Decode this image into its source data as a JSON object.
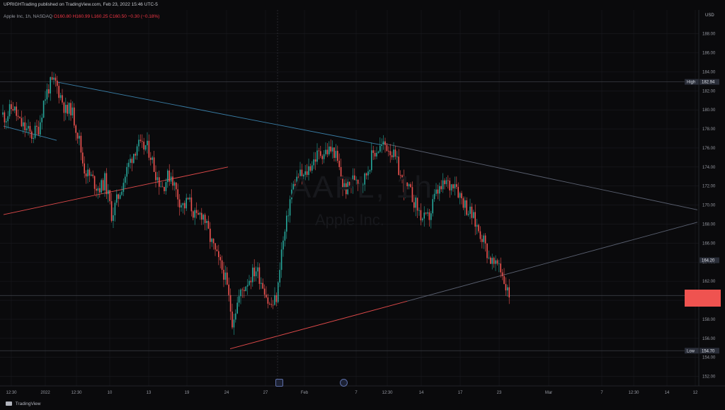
{
  "header": {
    "published": "UPRIGHTrading published on TradingView.com, Feb 23, 2022 15:46 UTC-5"
  },
  "legend": {
    "symbol": "Apple Inc, 1h, NASDAQ",
    "ohlc": "O160.80 H160.99 L160.25 C160.50 −0.30 (−0.18%)"
  },
  "watermark": {
    "symbol": "AAPL, 1h",
    "name": "Apple Inc."
  },
  "currency": "USD",
  "footer": {
    "brand": "TradingView"
  },
  "colors": {
    "background": "#0a0a0c",
    "up": "#26a69a",
    "down": "#ef5350",
    "trend_upper": "#3a7fa8",
    "trend_lower": "#e04a4a",
    "trend_right": "#5a6070",
    "level_line": "#3b3d44",
    "grid": "#1a1b20"
  },
  "chart_data": {
    "type": "candlestick",
    "ylim": [
      151.0,
      190.5
    ],
    "y_ticks": [
      152,
      154,
      156,
      158,
      160,
      162,
      164,
      166,
      168,
      170,
      172,
      174,
      176,
      178,
      180,
      182,
      184,
      186,
      188
    ],
    "x_tick_labels": [
      "12:30",
      "2022",
      "12:30",
      "10",
      "13",
      "19",
      "24",
      "27",
      "Feb",
      "7",
      "12:30",
      "14",
      "17",
      "23",
      "Mar",
      "7",
      "12:30",
      "14",
      "12"
    ],
    "price_tags": [
      {
        "label": "High",
        "value": "182.94",
        "price": 182.94
      },
      {
        "label": "",
        "value": "164.20",
        "price": 164.2
      },
      {
        "label": "Low",
        "value": "154.70",
        "price": 154.7
      }
    ],
    "current_price": 160.5,
    "path": [
      [
        0,
        179.8
      ],
      [
        8,
        179.2
      ],
      [
        18,
        180.4
      ],
      [
        28,
        178.6
      ],
      [
        36,
        178.0
      ],
      [
        45,
        177.3
      ],
      [
        55,
        178.2
      ],
      [
        62,
        181.0
      ],
      [
        70,
        182.6
      ],
      [
        78,
        182.9
      ],
      [
        86,
        181.4
      ],
      [
        94,
        179.6
      ],
      [
        100,
        180.2
      ],
      [
        106,
        178.6
      ],
      [
        112,
        176.8
      ],
      [
        118,
        174.0
      ],
      [
        124,
        173.2
      ],
      [
        130,
        172.8
      ],
      [
        136,
        172.0
      ],
      [
        142,
        171.8
      ],
      [
        148,
        172.6
      ],
      [
        154,
        170.5
      ],
      [
        158,
        168.9
      ],
      [
        164,
        170.2
      ],
      [
        170,
        171.6
      ],
      [
        176,
        172.9
      ],
      [
        182,
        174.3
      ],
      [
        188,
        175.4
      ],
      [
        194,
        176.4
      ],
      [
        200,
        175.9
      ],
      [
        206,
        176.2
      ],
      [
        212,
        175.5
      ],
      [
        218,
        173.8
      ],
      [
        224,
        172.6
      ],
      [
        230,
        171.9
      ],
      [
        236,
        172.9
      ],
      [
        242,
        173.2
      ],
      [
        248,
        171.6
      ],
      [
        254,
        170.4
      ],
      [
        260,
        169.8
      ],
      [
        266,
        170.6
      ],
      [
        272,
        169.4
      ],
      [
        278,
        168.4
      ],
      [
        284,
        169.2
      ],
      [
        288,
        168.9
      ],
      [
        292,
        167.6
      ],
      [
        298,
        166.2
      ],
      [
        304,
        165.0
      ],
      [
        310,
        163.8
      ],
      [
        316,
        162.9
      ],
      [
        320,
        161.6
      ],
      [
        324,
        159.8
      ],
      [
        328,
        157.9
      ],
      [
        332,
        158.9
      ],
      [
        338,
        160.4
      ],
      [
        344,
        161.3
      ],
      [
        350,
        162.1
      ],
      [
        356,
        162.7
      ],
      [
        362,
        163.3
      ],
      [
        368,
        162.2
      ],
      [
        374,
        161.2
      ],
      [
        380,
        159.4
      ],
      [
        386,
        159.6
      ],
      [
        392,
        160.6
      ],
      [
        396,
        164.6
      ],
      [
        400,
        166.1
      ],
      [
        404,
        167.7
      ],
      [
        408,
        169.9
      ],
      [
        412,
        171.5
      ],
      [
        418,
        172.6
      ],
      [
        424,
        173.1
      ],
      [
        430,
        172.9
      ],
      [
        436,
        173.9
      ],
      [
        442,
        174.6
      ],
      [
        448,
        175.2
      ],
      [
        454,
        175.5
      ],
      [
        460,
        175.6
      ],
      [
        466,
        175.8
      ],
      [
        472,
        175.6
      ],
      [
        478,
        174.1
      ],
      [
        484,
        172.1
      ],
      [
        490,
        171.6
      ],
      [
        496,
        172.3
      ],
      [
        502,
        173.1
      ],
      [
        508,
        172.6
      ],
      [
        514,
        172.6
      ],
      [
        520,
        173.9
      ],
      [
        526,
        175.3
      ],
      [
        532,
        175.8
      ],
      [
        538,
        176.1
      ],
      [
        544,
        176.3
      ],
      [
        550,
        176.0
      ],
      [
        556,
        175.1
      ],
      [
        562,
        174.1
      ],
      [
        566,
        172.9
      ],
      [
        572,
        171.8
      ],
      [
        578,
        171.5
      ],
      [
        584,
        170.6
      ],
      [
        590,
        169.6
      ],
      [
        596,
        168.6
      ],
      [
        602,
        168.4
      ],
      [
        608,
        169.0
      ],
      [
        612,
        170.5
      ],
      [
        618,
        171.4
      ],
      [
        624,
        171.7
      ],
      [
        630,
        172.4
      ],
      [
        636,
        171.9
      ],
      [
        642,
        172.8
      ],
      [
        648,
        171.3
      ],
      [
        654,
        170.5
      ],
      [
        660,
        169.6
      ],
      [
        666,
        169.0
      ],
      [
        670,
        168.3
      ],
      [
        676,
        167.4
      ],
      [
        682,
        166.6
      ],
      [
        686,
        165.6
      ],
      [
        690,
        164.6
      ],
      [
        696,
        163.9
      ],
      [
        700,
        163.4
      ],
      [
        704,
        164.2
      ],
      [
        708,
        163.1
      ],
      [
        712,
        162.1
      ],
      [
        716,
        161.0
      ],
      [
        720,
        160.5
      ]
    ],
    "trendlines": [
      {
        "kind": "upper",
        "from": [
          82,
          182.9
        ],
        "to": [
          540,
          176.3
        ]
      },
      {
        "kind": "upper-ext",
        "from": [
          540,
          176.5
        ],
        "to": [
          985,
          169.5
        ]
      },
      {
        "kind": "channel",
        "from": [
          5,
          178.3
        ],
        "to": [
          80,
          176.8
        ]
      },
      {
        "kind": "lower-red",
        "from": [
          5,
          169.0
        ],
        "to": [
          322,
          174.0
        ]
      },
      {
        "kind": "support",
        "from": [
          325,
          154.9
        ],
        "to": [
          575,
          159.9
        ]
      },
      {
        "kind": "support-ext",
        "from": [
          575,
          159.9
        ],
        "to": [
          985,
          168.2
        ]
      }
    ],
    "h_levels": [
      182.94,
      160.5,
      154.7
    ]
  }
}
